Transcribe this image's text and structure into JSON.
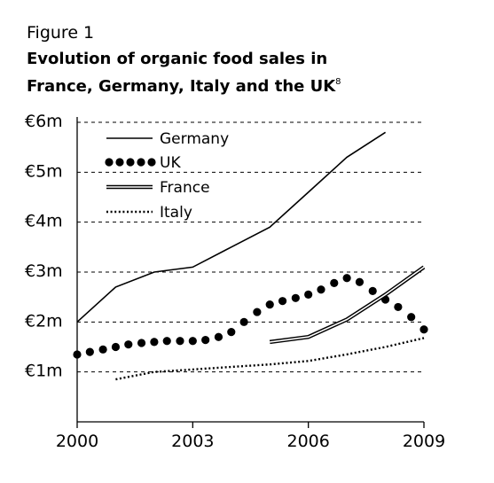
{
  "figure_label": "Figure 1",
  "title": "Evolution of organic food sales in France, Germany, Italy and the UK",
  "title_footnote": "8",
  "chart_data": {
    "type": "line",
    "title": "Evolution of organic food sales in France, Germany, Italy and the UK",
    "xlabel": "",
    "ylabel": "",
    "xlim": [
      2000,
      2009
    ],
    "ylim": [
      0,
      6
    ],
    "x_ticks": [
      2000,
      2003,
      2006,
      2009
    ],
    "x_tick_labels": [
      "2000",
      "2003",
      "2006",
      "2009"
    ],
    "y_ticks": [
      1,
      2,
      3,
      4,
      5,
      6
    ],
    "y_tick_labels": [
      "€1m",
      "€2m",
      "€3m",
      "€4m",
      "€5m",
      "€6m"
    ],
    "grid": "horizontal-dashed",
    "legend_position": "top-left",
    "series": [
      {
        "name": "Germany",
        "style": "solid",
        "x": [
          2000,
          2001,
          2002,
          2003,
          2004,
          2005,
          2006,
          2007,
          2008
        ],
        "values": [
          2.0,
          2.7,
          3.0,
          3.1,
          3.5,
          3.9,
          4.6,
          5.3,
          5.8
        ]
      },
      {
        "name": "UK",
        "style": "dots",
        "x": [
          2000,
          2000.33,
          2000.67,
          2001,
          2001.33,
          2001.67,
          2002,
          2002.33,
          2002.67,
          2003,
          2003.33,
          2003.67,
          2004,
          2004.33,
          2004.67,
          2005,
          2005.33,
          2005.67,
          2006,
          2006.33,
          2006.67,
          2007,
          2007.33,
          2007.67,
          2008,
          2008.33,
          2008.67,
          2009
        ],
        "values": [
          1.35,
          1.4,
          1.45,
          1.5,
          1.55,
          1.58,
          1.6,
          1.62,
          1.62,
          1.62,
          1.64,
          1.7,
          1.8,
          2.0,
          2.2,
          2.35,
          2.42,
          2.48,
          2.55,
          2.65,
          2.78,
          2.88,
          2.8,
          2.62,
          2.45,
          2.3,
          2.1,
          1.85
        ]
      },
      {
        "name": "France",
        "style": "double",
        "x": [
          2005,
          2006,
          2007,
          2008,
          2009
        ],
        "values": [
          1.6,
          1.7,
          2.05,
          2.55,
          3.1
        ]
      },
      {
        "name": "Italy",
        "style": "dotted",
        "x": [
          2001,
          2002,
          2003,
          2004,
          2005,
          2006,
          2007,
          2008,
          2009
        ],
        "values": [
          0.85,
          1.0,
          1.05,
          1.1,
          1.15,
          1.22,
          1.35,
          1.5,
          1.68
        ]
      }
    ],
    "colors": {
      "line": "#000000",
      "grid": "#000000"
    }
  }
}
